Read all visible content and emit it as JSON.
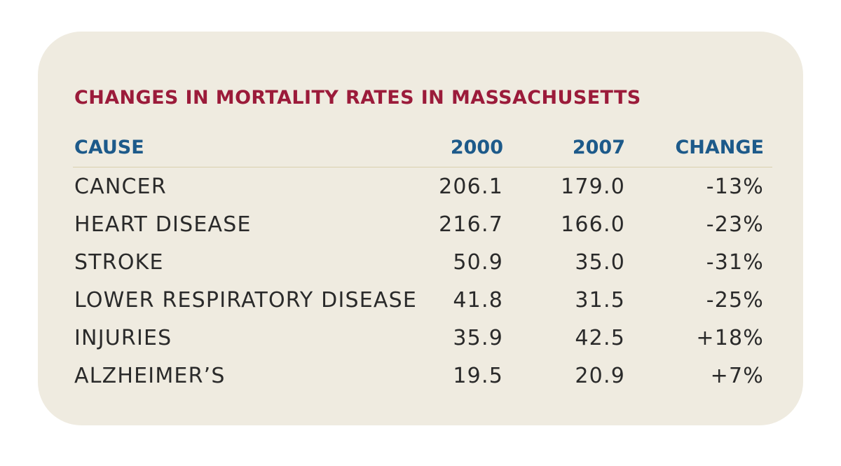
{
  "chart_data": {
    "type": "table",
    "title": "CHANGES IN MORTALITY RATES IN MASSACHUSETTS",
    "columns": [
      "CAUSE",
      "2000",
      "2007",
      "CHANGE"
    ],
    "rows": [
      [
        "CANCER",
        "206.1",
        "179.0",
        "-13%"
      ],
      [
        "HEART DISEASE",
        "216.7",
        "166.0",
        "-23%"
      ],
      [
        "STROKE",
        "50.9",
        "35.0",
        "-31%"
      ],
      [
        "LOWER RESPIRATORY DISEASE",
        "41.8",
        "31.5",
        "-25%"
      ],
      [
        "INJURIES",
        "35.9",
        "42.5",
        "+18%"
      ],
      [
        "ALZHEIMER’S",
        "19.5",
        "20.9",
        "+7%"
      ]
    ]
  },
  "colors": {
    "card_background": "#efebe0",
    "title": "#9b1b3a",
    "header": "#1d5a8a",
    "body_text": "#2a2a2a",
    "rule": "#d9cfae"
  }
}
